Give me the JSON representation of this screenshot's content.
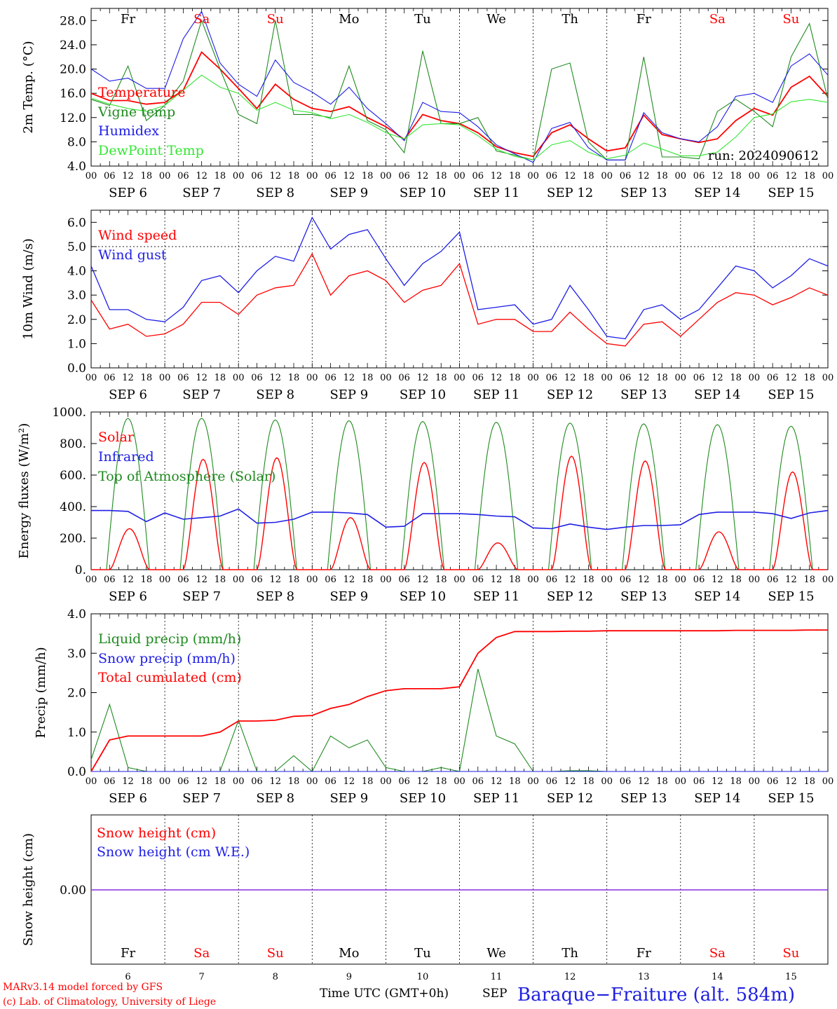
{
  "chart_data": [
    {
      "type": "line",
      "ylabel": "2m Temp. (°C)",
      "ylim": [
        4,
        30
      ],
      "yticks": [
        "4.0",
        "8.0",
        "12.0",
        "16.0",
        "20.0",
        "24.0",
        "28.0"
      ],
      "grid": "vertical dotted at day boundaries",
      "legend": [
        "Temperature",
        "Vigne temp",
        "Humidex",
        "DewPoint Temp"
      ],
      "run_label": "run: 2024090612",
      "x_hours": [
        0,
        6,
        12,
        18,
        24,
        30,
        36,
        42,
        48,
        54,
        60,
        66,
        72,
        78,
        84,
        90,
        96,
        102,
        108,
        114,
        120,
        126,
        132,
        138,
        144,
        150,
        156,
        162,
        168,
        174,
        180,
        186,
        192,
        198,
        204,
        210,
        216,
        222,
        228,
        234,
        240
      ],
      "series": [
        {
          "name": "Temperature",
          "color": "#ff0000",
          "values": [
            16,
            14.8,
            14.8,
            14.2,
            14.5,
            16.5,
            22.8,
            20,
            16.8,
            13.5,
            17.5,
            15,
            13.5,
            13,
            13.8,
            12,
            10.5,
            8.4,
            12.5,
            11.5,
            11,
            9.5,
            7.2,
            6.2,
            5.6,
            9.5,
            10.8,
            8.5,
            6.5,
            7,
            12.4,
            9.2,
            8.5,
            7.9,
            8.5,
            11.5,
            13.5,
            12.4,
            17,
            18.8,
            15.5
          ]
        },
        {
          "name": "Vigne temp",
          "color": "#1f8a1f",
          "values": [
            15,
            14,
            20.5,
            11.5,
            14,
            18,
            28,
            20,
            12.5,
            11,
            28,
            12.5,
            12.5,
            12,
            20.5,
            11.5,
            10,
            6.2,
            23,
            11,
            11,
            12,
            6.5,
            5.8,
            5,
            20,
            21,
            8,
            5,
            5,
            22,
            5.5,
            5.5,
            5.2,
            13,
            15,
            13,
            10.5,
            22,
            27.5,
            15
          ]
        },
        {
          "name": "Humidex",
          "color": "#1e1ee6",
          "values": [
            20,
            18,
            18.5,
            16.8,
            16.8,
            25,
            29.5,
            21,
            17.5,
            15.5,
            21.5,
            17.8,
            16.2,
            14.2,
            17,
            13.5,
            11,
            8.2,
            14.5,
            13,
            12.8,
            10.5,
            7.5,
            6,
            4.6,
            10.2,
            11.2,
            7,
            5,
            5,
            12.8,
            9.5,
            8.5,
            8,
            10.5,
            15.5,
            16,
            14.5,
            20.5,
            22.5,
            19
          ]
        },
        {
          "name": "DewPoint Temp",
          "color": "#33e633",
          "values": [
            15.2,
            14.2,
            13.5,
            13,
            14,
            16.5,
            19,
            17,
            16,
            13.2,
            14.5,
            13.2,
            12.8,
            11.8,
            12.5,
            11.2,
            9.5,
            8.5,
            10.8,
            11,
            10.8,
            9,
            6.8,
            5.6,
            5,
            7.5,
            8.2,
            6.3,
            5.2,
            5.8,
            7.8,
            6.8,
            5.7,
            5.7,
            6.3,
            8.8,
            12,
            12.6,
            14.6,
            15,
            14.5
          ]
        }
      ]
    },
    {
      "type": "line",
      "ylabel": "10m Wind (m/s)",
      "ylim": [
        0,
        6.5
      ],
      "yticks": [
        "0.0",
        "1.0",
        "2.0",
        "3.0",
        "4.0",
        "5.0",
        "6.0"
      ],
      "reference_line": 5.0,
      "legend": [
        "Wind speed",
        "Wind gust"
      ],
      "x_hours": [
        0,
        6,
        12,
        18,
        24,
        30,
        36,
        42,
        48,
        54,
        60,
        66,
        72,
        78,
        84,
        90,
        96,
        102,
        108,
        114,
        120,
        126,
        132,
        138,
        144,
        150,
        156,
        162,
        168,
        174,
        180,
        186,
        192,
        198,
        204,
        210,
        216,
        222,
        228,
        234,
        240
      ],
      "series": [
        {
          "name": "Wind speed",
          "color": "#ff0000",
          "values": [
            2.8,
            1.6,
            1.8,
            1.3,
            1.4,
            1.8,
            2.7,
            2.7,
            2.2,
            3,
            3.3,
            3.4,
            4.7,
            3,
            3.8,
            4,
            3.6,
            2.7,
            3.2,
            3.4,
            4.3,
            1.8,
            2,
            2,
            1.5,
            1.5,
            2.3,
            1.6,
            1,
            0.9,
            1.8,
            1.9,
            1.3,
            2,
            2.7,
            3.1,
            3,
            2.6,
            2.9,
            3.3,
            3
          ]
        },
        {
          "name": "Wind gust",
          "color": "#1e1ee6",
          "values": [
            4.2,
            2.4,
            2.4,
            2,
            1.9,
            2.5,
            3.6,
            3.8,
            3.1,
            4,
            4.6,
            4.4,
            6.2,
            4.9,
            5.5,
            5.7,
            4.5,
            3.4,
            4.3,
            4.8,
            5.6,
            2.4,
            2.5,
            2.6,
            1.8,
            2,
            3.4,
            2.4,
            1.3,
            1.2,
            2.4,
            2.6,
            2,
            2.4,
            3.3,
            4.2,
            4,
            3.3,
            3.8,
            4.5,
            4.2
          ]
        }
      ]
    },
    {
      "type": "line",
      "ylabel": "Energy fluxes (W/m²)",
      "ylim": [
        0,
        1000
      ],
      "yticks": [
        "0.",
        "200.",
        "400.",
        "600.",
        "800.",
        "1000."
      ],
      "legend": [
        "Solar",
        "Infrared",
        "Top of Atmosphere (Solar)"
      ],
      "toa_peaks": [
        960,
        960,
        950,
        945,
        940,
        935,
        930,
        925,
        920,
        910
      ],
      "solar_peaks": [
        260,
        700,
        710,
        330,
        680,
        170,
        720,
        690,
        240,
        620
      ],
      "x_hours": [
        0,
        6,
        12,
        18,
        24,
        30,
        36,
        42,
        48,
        54,
        60,
        66,
        72,
        78,
        84,
        90,
        96,
        102,
        108,
        114,
        120,
        126,
        132,
        138,
        144,
        150,
        156,
        162,
        168,
        174,
        180,
        186,
        192,
        198,
        204,
        210,
        216,
        222,
        228,
        234,
        240
      ],
      "series": [
        {
          "name": "Infrared",
          "color": "#1e1ee6",
          "values": [
            375,
            375,
            370,
            305,
            360,
            320,
            330,
            340,
            385,
            295,
            300,
            320,
            365,
            365,
            360,
            350,
            270,
            275,
            355,
            355,
            355,
            350,
            340,
            335,
            265,
            260,
            290,
            270,
            255,
            270,
            280,
            280,
            285,
            350,
            365,
            365,
            365,
            355,
            325,
            360,
            375
          ]
        }
      ]
    },
    {
      "type": "line",
      "ylabel": "Precip (mm/h)",
      "ylim": [
        0,
        4
      ],
      "yticks": [
        "0.0",
        "1.0",
        "2.0",
        "3.0",
        "4.0"
      ],
      "legend": [
        "Liquid precip (mm/h)",
        "Snow precip (mm/h)",
        "Total cumulated (cm)"
      ],
      "x_hours": [
        0,
        6,
        12,
        18,
        24,
        30,
        36,
        42,
        48,
        54,
        60,
        66,
        72,
        78,
        84,
        90,
        96,
        102,
        108,
        114,
        120,
        126,
        132,
        138,
        144,
        150,
        156,
        162,
        168,
        174,
        180,
        186,
        192,
        198,
        204,
        210,
        216,
        222,
        228,
        234,
        240
      ],
      "series": [
        {
          "name": "Liquid precip (mm/h)",
          "color": "#1f8a1f",
          "values": [
            0.3,
            1.7,
            0.1,
            0,
            0,
            0,
            0,
            0,
            1.3,
            0,
            0,
            0.4,
            0,
            0.9,
            0.6,
            0.8,
            0.1,
            0,
            0,
            0.1,
            0,
            2.6,
            0.9,
            0.7,
            0,
            0,
            0.02,
            0.02,
            0,
            0,
            0,
            0,
            0,
            0,
            0,
            0,
            0,
            0,
            0,
            0,
            0
          ]
        },
        {
          "name": "Snow precip (mm/h)",
          "color": "#1e1ee6",
          "values": [
            0,
            0,
            0,
            0,
            0,
            0,
            0,
            0,
            0,
            0,
            0,
            0,
            0,
            0,
            0,
            0,
            0,
            0,
            0,
            0,
            0,
            0,
            0,
            0,
            0,
            0,
            0,
            0,
            0,
            0,
            0,
            0,
            0,
            0,
            0,
            0,
            0,
            0,
            0,
            0,
            0
          ]
        },
        {
          "name": "Total cumulated (cm)",
          "color": "#ff0000",
          "values": [
            0,
            0.8,
            0.9,
            0.9,
            0.9,
            0.9,
            0.9,
            1.0,
            1.28,
            1.28,
            1.3,
            1.4,
            1.42,
            1.6,
            1.7,
            1.9,
            2.05,
            2.1,
            2.1,
            2.1,
            2.15,
            3.0,
            3.4,
            3.55,
            3.55,
            3.55,
            3.56,
            3.56,
            3.57,
            3.57,
            3.57,
            3.57,
            3.57,
            3.57,
            3.57,
            3.58,
            3.58,
            3.58,
            3.58,
            3.59,
            3.59
          ]
        }
      ]
    },
    {
      "type": "line",
      "ylabel": "Snow height (cm)",
      "yticks": [
        "0.00"
      ],
      "legend": [
        "Snow height (cm)",
        "Snow height (cm W.E.)"
      ],
      "series": [
        {
          "name": "Snow height (cm)",
          "color": "#ff0000",
          "values": [
            0,
            0
          ]
        },
        {
          "name": "Snow height (cm W.E.)",
          "color": "#1e1ee6",
          "values": [
            0,
            0
          ]
        }
      ]
    }
  ],
  "hour_ticks": [
    "00",
    "06",
    "12",
    "18"
  ],
  "end_tick": "00",
  "day_labels": [
    "SEP  6",
    "SEP  7",
    "SEP  8",
    "SEP  9",
    "SEP 10",
    "SEP 11",
    "SEP 12",
    "SEP 13",
    "SEP 14",
    "SEP 15"
  ],
  "weekdays": [
    "Fr",
    "Sa",
    "Su",
    "Mo",
    "Tu",
    "We",
    "Th",
    "Fr",
    "Sa",
    "Su"
  ],
  "weekend_flags": [
    false,
    true,
    true,
    false,
    false,
    false,
    false,
    false,
    true,
    true
  ],
  "day_numbers": [
    "6",
    "7",
    "8",
    "9",
    "10",
    "11",
    "12",
    "13",
    "14",
    "15"
  ],
  "colors": {
    "red": "#ff0000",
    "green": "#1f8a1f",
    "blue": "#1e1ee6",
    "lightgreen": "#33e633",
    "purple": "#8a2be2"
  },
  "footer": {
    "model": "MARv3.14 model forced by GFS",
    "lab": "(c) Lab. of Climatology, University of Liege",
    "xaxis": "Time UTC (GMT+0h)",
    "month": "SEP",
    "station": "Baraque−Fraiture (alt. 584m)"
  }
}
